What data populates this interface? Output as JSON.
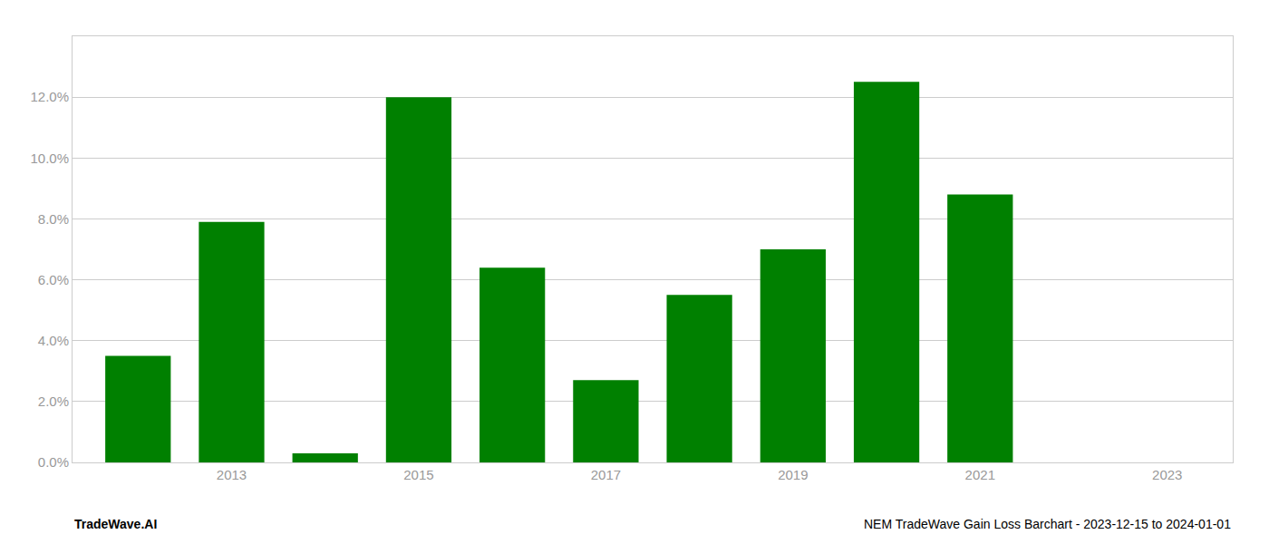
{
  "chart_data": {
    "type": "bar",
    "x": [
      2012.0,
      2013.0,
      2014.0,
      2015.0,
      2016.0,
      2017.0,
      2018.0,
      2019.0,
      2020.0,
      2021.0,
      2022.0
    ],
    "values": [
      0.035,
      0.079,
      0.003,
      0.12,
      0.064,
      0.027,
      0.055,
      0.07,
      0.125,
      0.088,
      0.0
    ],
    "color": "#008000",
    "xlim": [
      2011.3,
      2023.7
    ],
    "xticks": [
      2013,
      2015,
      2017,
      2019,
      2021,
      2023
    ],
    "ylim": [
      0,
      0.14
    ],
    "yticks": [
      {
        "value": 0.0,
        "label": "0.0%"
      },
      {
        "value": 0.02,
        "label": "2.0%"
      },
      {
        "value": 0.04,
        "label": "4.0%"
      },
      {
        "value": 0.06,
        "label": "6.0%"
      },
      {
        "value": 0.08,
        "label": "8.0%"
      },
      {
        "value": 0.1,
        "label": "10.0%"
      },
      {
        "value": 0.12,
        "label": "12.0%"
      }
    ],
    "grid": true,
    "annotations": [
      "TradeWave.AI",
      "NEM TradeWave Gain Loss Barchart - 2023-12-15 to 2024-01-01"
    ]
  }
}
